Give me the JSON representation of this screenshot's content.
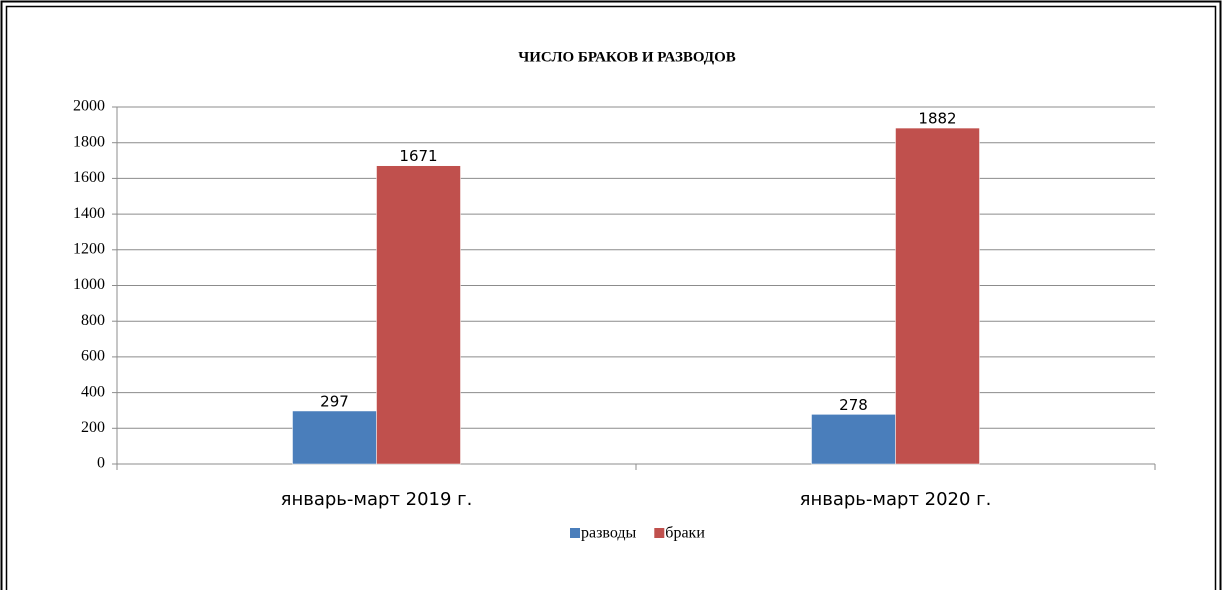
{
  "chart_data": {
    "type": "bar",
    "title": "ЧИСЛО БРАКОВ И РАЗВОДОВ",
    "categories": [
      "январь-март 2019 г.",
      "январь-март 2020 г."
    ],
    "series": [
      {
        "name": "разводы",
        "color": "#4a7ebb",
        "values": [
          297,
          278
        ]
      },
      {
        "name": "браки",
        "color": "#c0504d",
        "values": [
          1671,
          1882
        ]
      }
    ],
    "ylim": [
      0,
      2000
    ],
    "yticks": [
      0,
      200,
      400,
      600,
      800,
      1000,
      1200,
      1400,
      1600,
      1800,
      2000
    ],
    "grid": true,
    "legend": "bottom"
  }
}
